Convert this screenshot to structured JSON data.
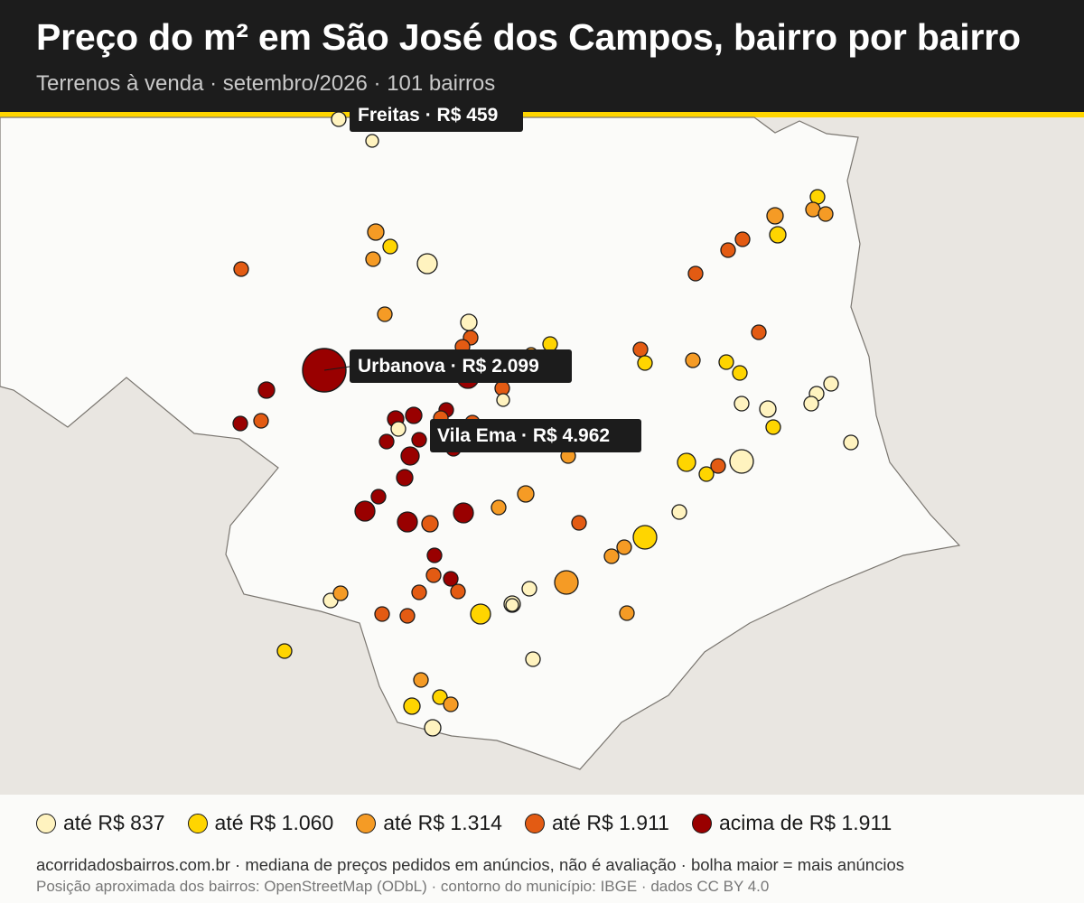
{
  "header": {
    "title": "Preço do m² em São José dos Campos, bairro por bairro",
    "subtitle": "Terrenos à venda · setembro/2026 · 101 bairros"
  },
  "map": {
    "colors": {
      "background": "#e9e6e1",
      "municipality_fill": "#fbfbf9",
      "municipality_border": "#7a7670",
      "accent": "#ffd500",
      "header": "#1c1c1c"
    },
    "callouts": [
      {
        "label": "Freitas · R$ 459",
        "category": "ate_837"
      },
      {
        "label": "Urbanova · R$ 2.099",
        "category": "acima_1911"
      },
      {
        "label": "Vila Ema · R$ 4.962",
        "category": "acima_1911"
      }
    ]
  },
  "legend": {
    "items": [
      {
        "key": "ate_837",
        "label": "até R$ 837",
        "color": "#fff3bf"
      },
      {
        "key": "ate_1060",
        "label": "até R$ 1.060",
        "color": "#ffd500"
      },
      {
        "key": "ate_1314",
        "label": "até R$ 1.314",
        "color": "#f59b25"
      },
      {
        "key": "ate_1911",
        "label": "até R$ 1.911",
        "color": "#e35b13"
      },
      {
        "key": "acima_1911",
        "label": "acima de R$ 1.911",
        "color": "#990000"
      }
    ]
  },
  "footer": {
    "note": "acorridadosbairros.com.br · mediana de preços pedidos em anúncios, não é avaliação · bolha maior = mais anúncios",
    "source": "Posição aproximada dos bairros: OpenStreetMap (ODbL) · contorno do município: IBGE · dados CC BY 4.0"
  }
}
